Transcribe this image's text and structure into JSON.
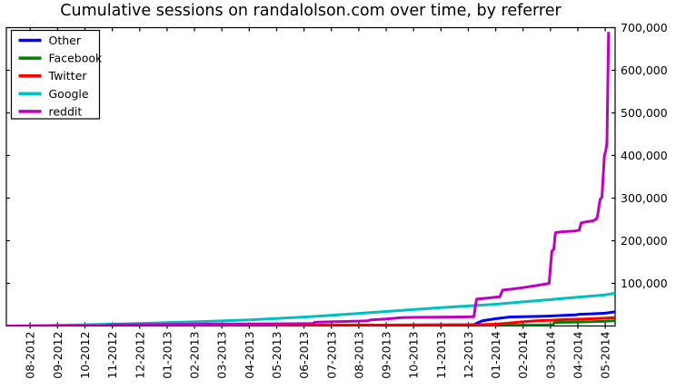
{
  "chart_data": {
    "type": "line",
    "title": "Cumulative sessions on randalolson.com over time, by referrer",
    "xlabel": "",
    "ylabel": "",
    "ylim": [
      0,
      700000
    ],
    "xlim_month_index": [
      -0.87,
      21.36
    ],
    "x_unit": "month-index where 0 = 08-2012 tick, 1 per month",
    "grid": false,
    "legend_position": "upper-left",
    "frame_color": "#000000",
    "background_color": "#ffffff",
    "x_tick_labels": [
      "08-2012",
      "09-2012",
      "10-2012",
      "11-2012",
      "12-2012",
      "01-2013",
      "02-2013",
      "03-2013",
      "04-2013",
      "05-2013",
      "06-2013",
      "07-2013",
      "08-2013",
      "09-2013",
      "10-2013",
      "11-2013",
      "12-2013",
      "01-2014",
      "02-2014",
      "03-2014",
      "04-2014",
      "05-2014"
    ],
    "y_tick_values": [
      100000,
      200000,
      300000,
      400000,
      500000,
      600000,
      700000
    ],
    "y_tick_labels": [
      "100,000",
      "200,000",
      "300,000",
      "400,000",
      "500,000",
      "600,000",
      "700,000"
    ],
    "series": [
      {
        "name": "Other",
        "color": "#0000ff",
        "points": [
          [
            -0.87,
            0
          ],
          [
            0,
            100
          ],
          [
            2,
            300
          ],
          [
            4,
            600
          ],
          [
            6,
            900
          ],
          [
            8,
            1200
          ],
          [
            10,
            1500
          ],
          [
            12,
            1900
          ],
          [
            14,
            2300
          ],
          [
            15,
            2500
          ],
          [
            16,
            2800
          ],
          [
            16.2,
            3200
          ],
          [
            16.5,
            12000
          ],
          [
            16.8,
            15000
          ],
          [
            17,
            17000
          ],
          [
            17.5,
            21000
          ],
          [
            18,
            22000
          ],
          [
            18.6,
            22500
          ],
          [
            19,
            23500
          ],
          [
            19.5,
            25000
          ],
          [
            19.9,
            26000
          ],
          [
            20.05,
            27500
          ],
          [
            20.5,
            28500
          ],
          [
            21,
            30000
          ],
          [
            21.36,
            33500
          ]
        ]
      },
      {
        "name": "Facebook",
        "color": "#008000",
        "points": [
          [
            -0.87,
            0
          ],
          [
            0,
            50
          ],
          [
            4,
            300
          ],
          [
            8,
            600
          ],
          [
            12,
            900
          ],
          [
            14,
            1100
          ],
          [
            16,
            1300
          ],
          [
            17,
            1600
          ],
          [
            18,
            1900
          ],
          [
            19,
            2200
          ],
          [
            19.08,
            2400
          ],
          [
            19.15,
            8000
          ],
          [
            19.5,
            8800
          ],
          [
            20,
            9300
          ],
          [
            20.5,
            10000
          ],
          [
            21,
            11000
          ],
          [
            21.36,
            12500
          ]
        ]
      },
      {
        "name": "Twitter",
        "color": "#ff0000",
        "points": [
          [
            -0.87,
            0
          ],
          [
            0,
            100
          ],
          [
            2,
            400
          ],
          [
            4,
            700
          ],
          [
            6,
            1000
          ],
          [
            8,
            1300
          ],
          [
            10,
            1600
          ],
          [
            12,
            2000
          ],
          [
            14,
            2400
          ],
          [
            16,
            2800
          ],
          [
            16.5,
            3200
          ],
          [
            17,
            4200
          ],
          [
            17.5,
            6800
          ],
          [
            18,
            9800
          ],
          [
            18.5,
            12200
          ],
          [
            19,
            13500
          ],
          [
            19.5,
            15000
          ],
          [
            20,
            16000
          ],
          [
            20.5,
            17000
          ],
          [
            21,
            18200
          ],
          [
            21.36,
            19500
          ]
        ]
      },
      {
        "name": "Google",
        "color": "#00bfbf",
        "points": [
          [
            -0.87,
            0
          ],
          [
            0,
            700
          ],
          [
            1,
            1800
          ],
          [
            2,
            3000
          ],
          [
            3,
            4500
          ],
          [
            4,
            6000
          ],
          [
            5,
            7800
          ],
          [
            6,
            9800
          ],
          [
            7,
            12000
          ],
          [
            8,
            14500
          ],
          [
            9,
            17500
          ],
          [
            10,
            21000
          ],
          [
            11,
            25000
          ],
          [
            12,
            29500
          ],
          [
            13,
            34000
          ],
          [
            14,
            38500
          ],
          [
            15,
            43000
          ],
          [
            16,
            47000
          ],
          [
            17,
            51000
          ],
          [
            18,
            56500
          ],
          [
            19,
            62000
          ],
          [
            20,
            67500
          ],
          [
            21,
            73000
          ],
          [
            21.36,
            77000
          ]
        ]
      },
      {
        "name": "reddit",
        "color": "#bf00bf",
        "points": [
          [
            -0.87,
            0
          ],
          [
            0,
            200
          ],
          [
            1,
            500
          ],
          [
            2,
            900
          ],
          [
            2.8,
            1100
          ],
          [
            3,
            2700
          ],
          [
            4,
            3200
          ],
          [
            5,
            3600
          ],
          [
            6,
            4000
          ],
          [
            7,
            4400
          ],
          [
            8,
            4800
          ],
          [
            9,
            5200
          ],
          [
            10,
            5500
          ],
          [
            10.3,
            5700
          ],
          [
            10.4,
            8800
          ],
          [
            11,
            9800
          ],
          [
            12,
            11500
          ],
          [
            12.3,
            12000
          ],
          [
            12.45,
            14500
          ],
          [
            13,
            16500
          ],
          [
            13.6,
            19500
          ],
          [
            14,
            20200
          ],
          [
            15,
            20900
          ],
          [
            16,
            21500
          ],
          [
            16.2,
            22000
          ],
          [
            16.3,
            63000
          ],
          [
            16.7,
            65500
          ],
          [
            17,
            67500
          ],
          [
            17.15,
            68500
          ],
          [
            17.25,
            84000
          ],
          [
            17.6,
            86500
          ],
          [
            18,
            90000
          ],
          [
            18.5,
            95000
          ],
          [
            18.95,
            100000
          ],
          [
            19.0,
            140000
          ],
          [
            19.05,
            176000
          ],
          [
            19.12,
            180000
          ],
          [
            19.18,
            219000
          ],
          [
            19.4,
            221000
          ],
          [
            19.9,
            223000
          ],
          [
            20.05,
            225000
          ],
          [
            20.12,
            242000
          ],
          [
            20.35,
            245000
          ],
          [
            20.55,
            246500
          ],
          [
            20.68,
            251000
          ],
          [
            20.72,
            258000
          ],
          [
            20.78,
            285000
          ],
          [
            20.82,
            298000
          ],
          [
            20.88,
            302000
          ],
          [
            20.97,
            400000
          ],
          [
            21.02,
            412000
          ],
          [
            21.06,
            430000
          ],
          [
            21.12,
            690000
          ]
        ]
      }
    ]
  }
}
